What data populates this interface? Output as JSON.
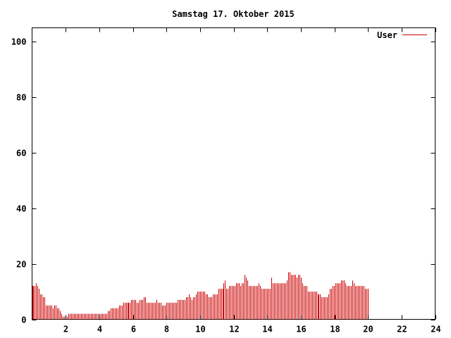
{
  "chart_data": {
    "type": "bar",
    "title": "Samstag 17. Oktober 2015",
    "xlabel": "",
    "ylabel": "",
    "xlim": [
      0,
      24
    ],
    "ylim": [
      0,
      105
    ],
    "x_ticks": [
      2,
      4,
      6,
      8,
      10,
      12,
      14,
      16,
      18,
      20,
      22,
      24
    ],
    "x_tick_labels": [
      "2",
      "4",
      "6",
      "8",
      "10",
      "12",
      "14",
      "16",
      "18",
      "20",
      "22",
      "24"
    ],
    "y_ticks": [
      0,
      20,
      40,
      60,
      80,
      100
    ],
    "y_tick_labels": [
      "0",
      "20",
      "40",
      "60",
      "80",
      "100"
    ],
    "grid": false,
    "legend_position": "top-right",
    "series_color": "#cc0000",
    "series": [
      {
        "name": "User",
        "x_start": 0,
        "x_step": 0.0833,
        "values": [
          12,
          12,
          12,
          13,
          12,
          11,
          9,
          9,
          8,
          8,
          5,
          5,
          5,
          5,
          5,
          4,
          5,
          5,
          4,
          4,
          3,
          2,
          1,
          1,
          1,
          1,
          2,
          2,
          2,
          2,
          2,
          2,
          2,
          2,
          2,
          2,
          2,
          2,
          2,
          2,
          2,
          2,
          2,
          2,
          2,
          2,
          2,
          2,
          2,
          2,
          2,
          2,
          2,
          2,
          3,
          3,
          4,
          4,
          4,
          4,
          4,
          4,
          5,
          5,
          5,
          6,
          6,
          6,
          6,
          6,
          6,
          7,
          7,
          7,
          7,
          6,
          6,
          7,
          7,
          7,
          8,
          8,
          6,
          6,
          6,
          6,
          6,
          6,
          6,
          7,
          6,
          6,
          6,
          5,
          5,
          5,
          6,
          6,
          6,
          6,
          6,
          6,
          6,
          6,
          7,
          7,
          7,
          7,
          7,
          7,
          8,
          8,
          9,
          8,
          7,
          8,
          8,
          9,
          10,
          10,
          10,
          10,
          10,
          10,
          9,
          9,
          8,
          8,
          8,
          9,
          9,
          9,
          9,
          11,
          11,
          11,
          11,
          13,
          14,
          11,
          11,
          12,
          12,
          12,
          12,
          12,
          13,
          13,
          13,
          12,
          13,
          13,
          16,
          15,
          14,
          12,
          12,
          12,
          12,
          12,
          12,
          12,
          13,
          12,
          11,
          11,
          11,
          11,
          11,
          11,
          11,
          15,
          13,
          13,
          13,
          13,
          13,
          13,
          13,
          13,
          13,
          13,
          14,
          17,
          17,
          16,
          16,
          16,
          16,
          15,
          16,
          16,
          15,
          13,
          12,
          12,
          12,
          10,
          10,
          10,
          10,
          10,
          10,
          10,
          9,
          9,
          9,
          8,
          8,
          8,
          8,
          8,
          9,
          11,
          11,
          12,
          12,
          13,
          13,
          13,
          13,
          14,
          14,
          14,
          13,
          12,
          12,
          12,
          12,
          14,
          13,
          12,
          12,
          12,
          12,
          12,
          12,
          12,
          11,
          11,
          11
        ]
      }
    ]
  }
}
